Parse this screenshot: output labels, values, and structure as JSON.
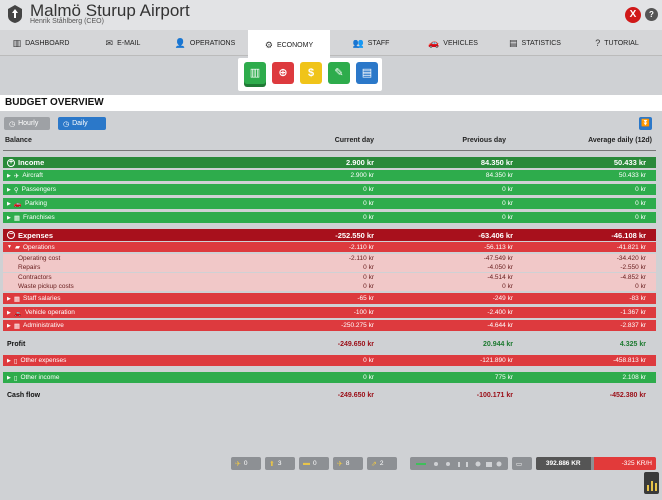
{
  "header": {
    "title": "Malmö Sturup Airport",
    "subtitle": "Henrik Ståhlberg (CEO)",
    "close_label": "X",
    "help_label": "?"
  },
  "tabs": [
    {
      "label": "Dashboard",
      "icon": "dashboard-icon",
      "glyph": "▥"
    },
    {
      "label": "E-mail",
      "icon": "mail-icon",
      "glyph": "✉"
    },
    {
      "label": "Operations",
      "icon": "operations-icon",
      "glyph": "👤"
    },
    {
      "label": "Economy",
      "icon": "economy-icon",
      "glyph": "⚙"
    },
    {
      "label": "Staff",
      "icon": "staff-icon",
      "glyph": "👥"
    },
    {
      "label": "Vehicles",
      "icon": "vehicles-icon",
      "glyph": "🚗"
    },
    {
      "label": "Statistics",
      "icon": "statistics-icon",
      "glyph": "▤"
    },
    {
      "label": "Tutorial",
      "icon": "tutorial-icon",
      "glyph": "?"
    }
  ],
  "economy_buttons": [
    {
      "icon": "budget-chart-icon",
      "color": "#2eac4c",
      "glyph": "▥"
    },
    {
      "icon": "loan-icon",
      "color": "#dd3a3e",
      "glyph": "⊕"
    },
    {
      "icon": "fees-icon",
      "color": "#f0c419",
      "glyph": "$"
    },
    {
      "icon": "contracts-icon",
      "color": "#2eac4c",
      "glyph": "✎"
    },
    {
      "icon": "report-icon",
      "color": "#2b78c9",
      "glyph": "▤"
    }
  ],
  "section_title": "Budget Overview",
  "toggles": {
    "hourly": "Hourly",
    "daily": "Daily"
  },
  "columns": {
    "balance": "Balance",
    "current": "Current day",
    "previous": "Previous day",
    "average": "Average daily (12d)"
  },
  "rows": [
    {
      "label": "Income",
      "type": "dk-g",
      "icon": "plus-circle-icon",
      "current": "2.900 kr",
      "previous": "84.350 kr",
      "average": "50.433 kr"
    },
    {
      "label": "Aircraft",
      "type": "g",
      "icon": "aircraft-icon",
      "glyph": "✈",
      "current": "2.900 kr",
      "previous": "84.350 kr",
      "average": "50.433 kr"
    },
    {
      "label": "Passengers",
      "type": "g",
      "icon": "passengers-icon",
      "glyph": "⚲",
      "current": "0 kr",
      "previous": "0 kr",
      "average": "0 kr"
    },
    {
      "label": "Parking",
      "type": "g",
      "icon": "parking-icon",
      "glyph": "🚗",
      "current": "0 kr",
      "previous": "0 kr",
      "average": "0 kr"
    },
    {
      "label": "Franchises",
      "type": "g",
      "icon": "franchises-icon",
      "glyph": "▦",
      "current": "0 kr",
      "previous": "0 kr",
      "average": "0 kr"
    },
    {
      "label": "Expenses",
      "type": "dk-r",
      "icon": "minus-circle-icon",
      "current": "-252.550 kr",
      "previous": "-63.406 kr",
      "average": "-46.108 kr"
    },
    {
      "label": "Operations",
      "type": "r",
      "icon": "operations-icon",
      "glyph": "▰",
      "open": true,
      "current": "-2.110 kr",
      "previous": "-56.113 kr",
      "average": "-41.821 kr"
    },
    {
      "label": "Operating cost",
      "type": "pk",
      "current": "-2.110 kr",
      "previous": "-47.549 kr",
      "average": "-34.420 kr"
    },
    {
      "label": "Repairs",
      "type": "pk",
      "current": "0 kr",
      "previous": "-4.050 kr",
      "average": "-2.550 kr"
    },
    {
      "label": "Contractors",
      "type": "pk",
      "current": "0 kr",
      "previous": "-4.514 kr",
      "average": "-4.852 kr"
    },
    {
      "label": "Waste pickup costs",
      "type": "pk",
      "current": "0 kr",
      "previous": "0 kr",
      "average": "0 kr"
    },
    {
      "label": "Staff salaries",
      "type": "r",
      "icon": "staff-icon",
      "glyph": "▦",
      "current": "-65 kr",
      "previous": "-249 kr",
      "average": "-83 kr"
    },
    {
      "label": "Vehicle operation",
      "type": "r",
      "icon": "vehicle-icon",
      "glyph": "🚗",
      "current": "-100 kr",
      "previous": "-2.400 kr",
      "average": "-1.367 kr"
    },
    {
      "label": "Administrative",
      "type": "r",
      "icon": "admin-icon",
      "glyph": "▦",
      "current": "-250.275 kr",
      "previous": "-4.644 kr",
      "average": "-2.837 kr"
    },
    {
      "label": "Profit",
      "type": "pl",
      "current": "-249.650 kr",
      "previous": "20.944 kr",
      "average": "4.325 kr"
    },
    {
      "label": "Other expenses",
      "type": "r",
      "icon": "other-expenses-icon",
      "glyph": "▯",
      "current": "0 kr",
      "previous": "-121.890 kr",
      "average": "-458.813 kr"
    },
    {
      "label": "Other income",
      "type": "g",
      "icon": "other-income-icon",
      "glyph": "▯",
      "current": "0 kr",
      "previous": "775 kr",
      "average": "2.108 kr"
    },
    {
      "label": "Cash flow",
      "type": "pl",
      "current": "-249.650 kr",
      "previous": "-100.171 kr",
      "average": "-452.380 kr"
    }
  ],
  "footer": {
    "counters": [
      {
        "icon": "aircraft-small-icon",
        "glyph": "✈",
        "value": "0"
      },
      {
        "icon": "tow-icon",
        "glyph": "⬆",
        "value": "3"
      },
      {
        "icon": "bus-icon",
        "glyph": "▬",
        "value": "0"
      },
      {
        "icon": "plane-arrive-icon",
        "glyph": "✈",
        "value": "8"
      },
      {
        "icon": "depart-icon",
        "glyph": "⇗",
        "value": "2"
      }
    ],
    "balance": "392.886 KR",
    "rate": "-325 KR/H"
  }
}
